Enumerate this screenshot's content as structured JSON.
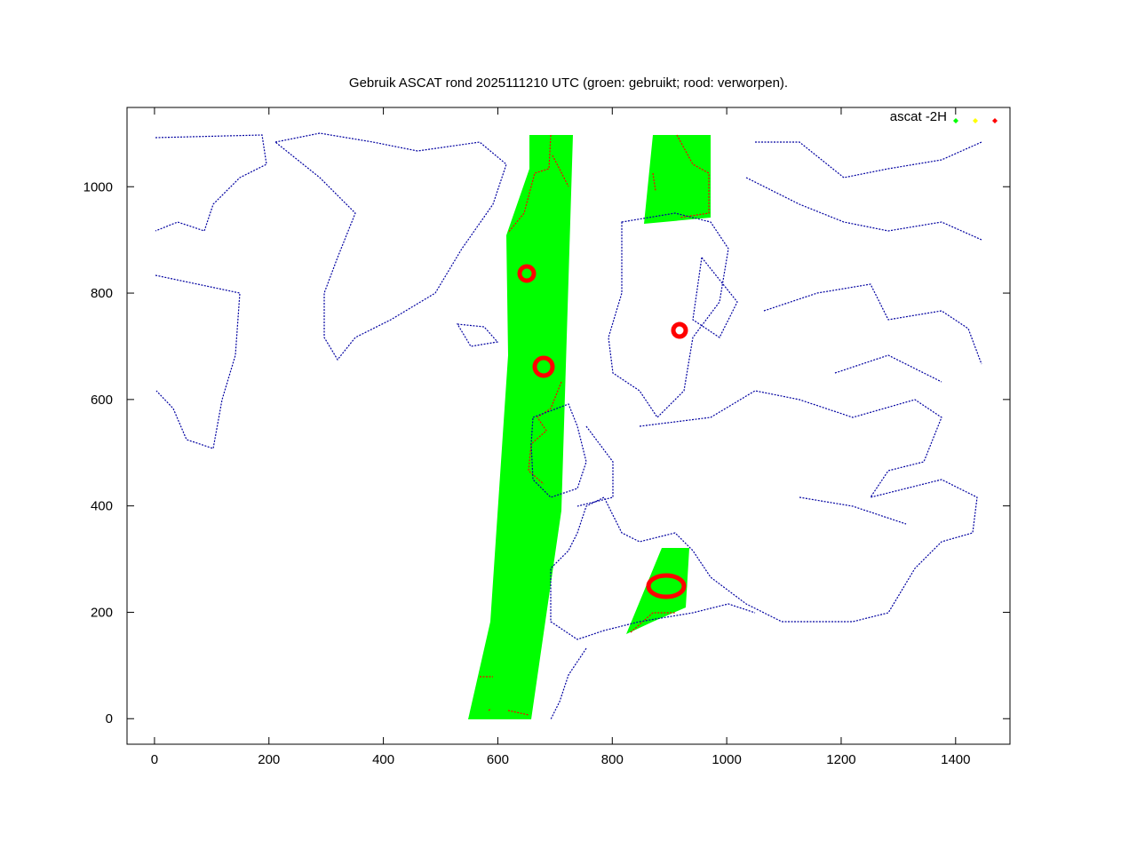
{
  "chart_data": {
    "type": "scatter",
    "title": "Gebruik ASCAT rond 2025111210 UTC (groen: gebruikt; rood: verworpen).",
    "legend": {
      "label": "ascat -2H",
      "colors": [
        "#00ff00",
        "#ffff00",
        "#ff0000"
      ]
    },
    "xlim": [
      -48,
      1495
    ],
    "xticks": [
      0,
      200,
      400,
      600,
      800,
      1000,
      1200,
      1400
    ],
    "ylim": [
      -48,
      1149
    ],
    "yticks": [
      0,
      200,
      400,
      600,
      800,
      1000
    ],
    "coast_color": "#0000a0"
  }
}
